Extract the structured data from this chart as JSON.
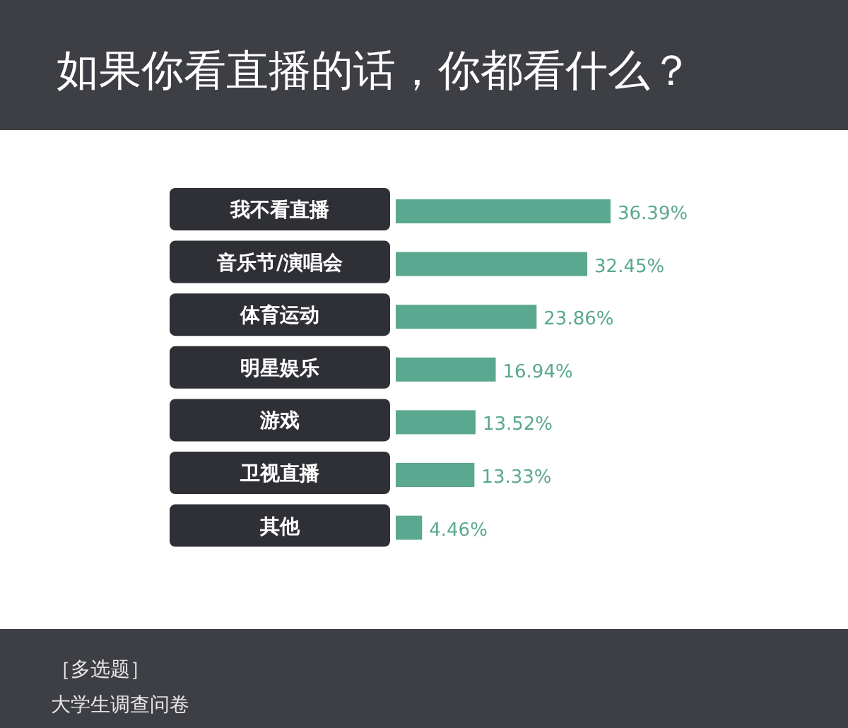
{
  "chart_data": {
    "type": "bar",
    "orientation": "horizontal",
    "title": "如果你看直播的话，你都看什么？",
    "categories": [
      "我不看直播",
      "音乐节/演唱会",
      "体育运动",
      "明星娱乐",
      "游戏",
      "卫视直播",
      "其他"
    ],
    "values": [
      36.39,
      32.45,
      23.86,
      16.94,
      13.52,
      13.33,
      4.46
    ],
    "value_labels": [
      "36.39%",
      "32.45%",
      "23.86%",
      "16.94%",
      "13.52%",
      "13.33%",
      "4.46%"
    ],
    "color": "#5aa88f",
    "annotations": [
      "［多选题］",
      "大学生调查问卷"
    ]
  }
}
